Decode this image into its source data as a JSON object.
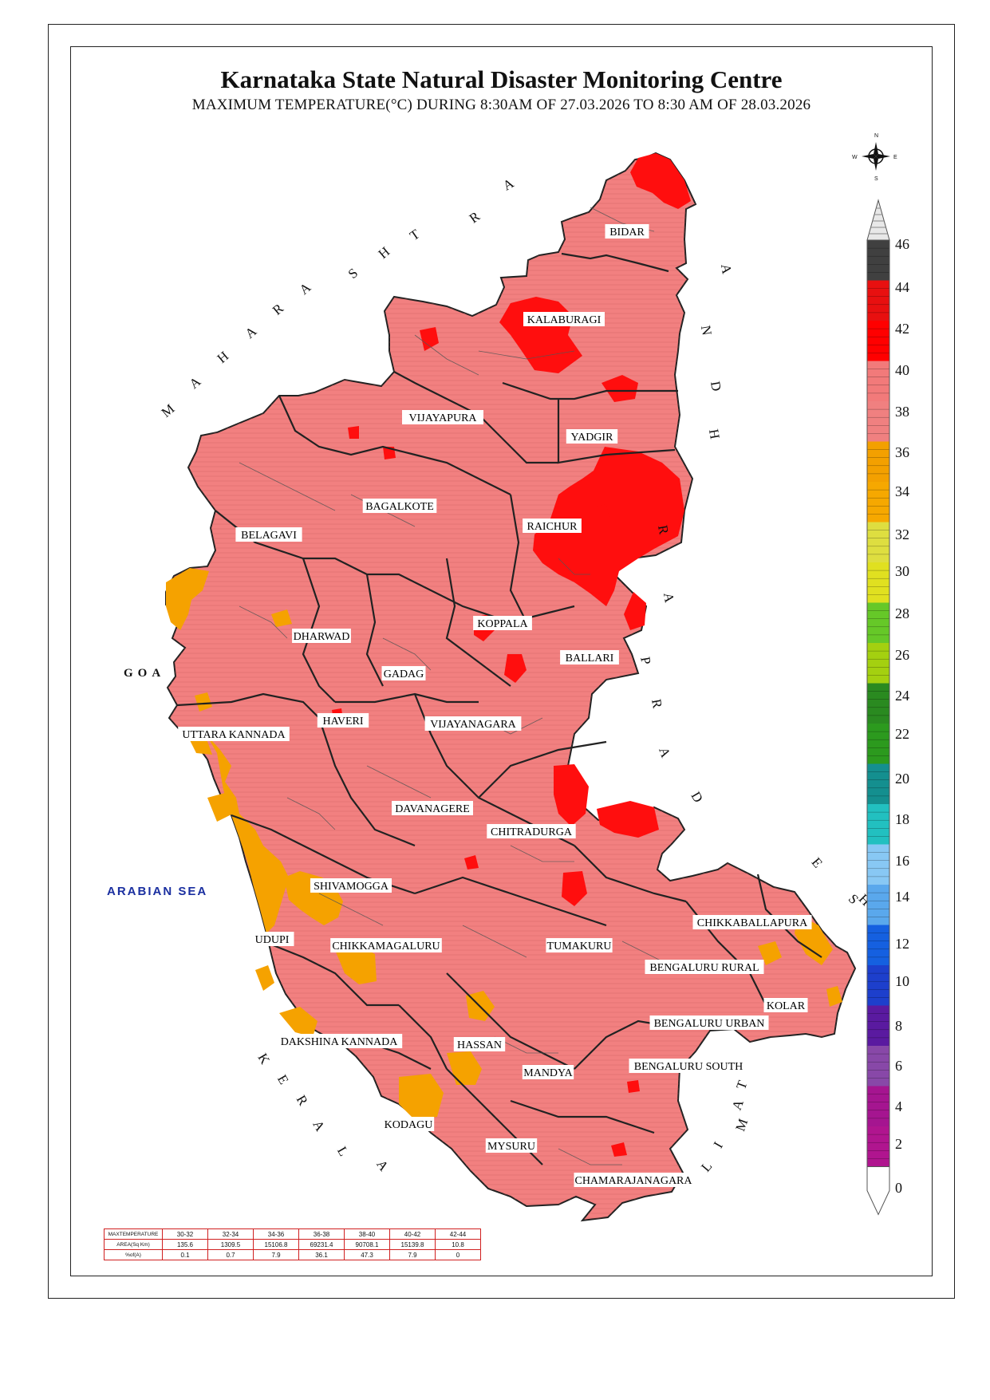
{
  "title": "Karnataka State Natural Disaster Monitoring Centre",
  "subtitle": "MAXIMUM TEMPERATURE(°C) DURING 8:30AM OF 27.03.2026 TO 8:30 AM OF 28.03.2026",
  "compass": {
    "n": "N",
    "s": "S",
    "e": "E",
    "w": "W",
    "icon": "compass-rose-icon"
  },
  "neighbours": {
    "maharashtra": "MAHARASHTRA",
    "andhra": "ANDHRA PRADESH",
    "kerala": "KERALA",
    "tamil": "TAMIL",
    "goa": "GOA",
    "sea": "ARABIAN SEA"
  },
  "colors": {
    "t0_2": "#b0158f",
    "t2_4": "#a51590",
    "t4_6": "#8848a8",
    "t6_8": "#5a1aa0",
    "t8_10": "#1d3fcc",
    "t10_12": "#1560e0",
    "t12_14": "#5aa8ec",
    "t14_16": "#88c8f4",
    "t16_18": "#22c0c0",
    "t18_20": "#148f8f",
    "t20_22": "#2c9a1e",
    "t22_24": "#2a8a20",
    "t24_26": "#a4d010",
    "t26_28": "#66c828",
    "t28_30": "#e0e020",
    "t30_32": "#dede40",
    "t32_34": "#f6a800",
    "t34_36": "#f3a000",
    "t36_38": "#f08080",
    "t38_40": "#f27a7a",
    "t40_42": "#ff0000",
    "t42_44": "#e81010",
    "t44_46": "#404040",
    "state_fill": "#f28080",
    "hot_fill": "#ff1010",
    "warm_fill": "#f5a200"
  },
  "legend": {
    "ticks": [
      "46",
      "44",
      "42",
      "40",
      "38",
      "36",
      "34",
      "32",
      "30",
      "28",
      "26",
      "24",
      "22",
      "20",
      "18",
      "16",
      "14",
      "12",
      "10",
      "8",
      "6",
      "4",
      "2",
      "0"
    ]
  },
  "districts": [
    {
      "name": "BIDAR"
    },
    {
      "name": "KALABURAGI"
    },
    {
      "name": "VIJAYAPURA"
    },
    {
      "name": "YADGIR"
    },
    {
      "name": "BAGALKOTE"
    },
    {
      "name": "BELAGAVI"
    },
    {
      "name": "RAICHUR"
    },
    {
      "name": "KOPPALA"
    },
    {
      "name": "DHARWAD"
    },
    {
      "name": "BALLARI"
    },
    {
      "name": "GADAG"
    },
    {
      "name": "HAVERI"
    },
    {
      "name": "VIJAYANAGARA"
    },
    {
      "name": "UTTARA KANNADA"
    },
    {
      "name": "DAVANAGERE"
    },
    {
      "name": "CHITRADURGA"
    },
    {
      "name": "SHIVAMOGGA"
    },
    {
      "name": "CHIKKABALLAPURA"
    },
    {
      "name": "TUMAKURU"
    },
    {
      "name": "UDUPI"
    },
    {
      "name": "CHIKKAMAGALURU"
    },
    {
      "name": "BENGALURU RURAL"
    },
    {
      "name": "KOLAR"
    },
    {
      "name": "BENGALURU URBAN"
    },
    {
      "name": "DAKSHINA KANNADA"
    },
    {
      "name": "HASSAN"
    },
    {
      "name": "MANDYA"
    },
    {
      "name": "BENGALURU SOUTH"
    },
    {
      "name": "KODAGU"
    },
    {
      "name": "MYSURU"
    },
    {
      "name": "CHAMARAJANAGARA"
    }
  ],
  "stats": {
    "row_headers": [
      "MAXTEMPERATURE",
      "AREA(Sq Km)",
      "%of(A)"
    ],
    "ranges": [
      "30-32",
      "32-34",
      "34-36",
      "36-38",
      "38-40",
      "40-42",
      "42-44"
    ],
    "area": [
      "135.6",
      "1309.5",
      "15106.8",
      "69231.4",
      "90708.1",
      "15139.8",
      "10.8"
    ],
    "percent": [
      "0.1",
      "0.7",
      "7.9",
      "36.1",
      "47.3",
      "7.9",
      "0"
    ]
  }
}
